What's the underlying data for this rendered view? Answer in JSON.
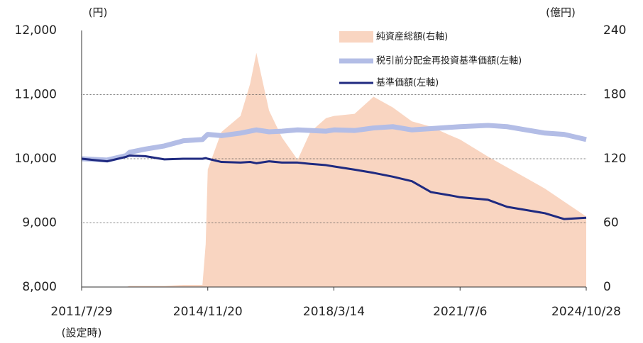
{
  "chart_data": {
    "type": "line",
    "y_label": "(円)",
    "y2_label": "(億円)",
    "annotation": "(設定時)",
    "x": [
      "2011/7/29",
      "2012/3/30",
      "2012/9/28",
      "2012/10/31",
      "2013/3/29",
      "2013/9/30",
      "2014/3/31",
      "2014/9/30",
      "2014/10/31",
      "2014/11/20",
      "2015/3/31",
      "2015/9/30",
      "2015/12/31",
      "2016/2/29",
      "2016/6/30",
      "2016/10/31",
      "2017/3/31",
      "2017/7/31",
      "2017/12/29",
      "2018/3/14",
      "2018/9/28",
      "2019/3/29",
      "2019/9/30",
      "2020/3/31",
      "2020/9/30",
      "2021/3/31",
      "2021/7/6",
      "2022/3/31",
      "2022/9/30",
      "2023/3/31",
      "2023/9/29",
      "2024/3/29",
      "2024/10/28"
    ],
    "xlim": [
      "2011/7/29",
      "2024/10/28"
    ],
    "xticks": [
      "2011/7/29",
      "2014/11/20",
      "2018/3/14",
      "2021/7/6",
      "2024/10/28"
    ],
    "ylim": [
      8000,
      12000
    ],
    "yticks": [
      {
        "value": 8000,
        "label": "8,000"
      },
      {
        "value": 9000,
        "label": "9,000"
      },
      {
        "value": 10000,
        "label": "10,000"
      },
      {
        "value": 11000,
        "label": "11,000"
      },
      {
        "value": 12000,
        "label": "12,000"
      }
    ],
    "y2lim": [
      0,
      240
    ],
    "y2ticks": [
      0,
      60,
      120,
      180,
      240
    ],
    "grid": true,
    "series": [
      {
        "name": "純資産総額(右軸)",
        "type": "area",
        "axis": "y2",
        "color": "#f9d5c1",
        "values": [
          0,
          0,
          0,
          1,
          1,
          1,
          2,
          2,
          40,
          110,
          145,
          160,
          190,
          219,
          165,
          140,
          119,
          145,
          158,
          160,
          162,
          178,
          168,
          155,
          150,
          142,
          138,
          122,
          112,
          102,
          92,
          80,
          66
        ]
      },
      {
        "name": "税引前分配金再投資基準価額(左軸)",
        "type": "line",
        "color": "#b3bde6",
        "values": [
          10000,
          9980,
          10050,
          10100,
          10150,
          10200,
          10280,
          10300,
          10350,
          10380,
          10360,
          10400,
          10430,
          10450,
          10420,
          10430,
          10450,
          10440,
          10430,
          10450,
          10440,
          10480,
          10500,
          10450,
          10470,
          10490,
          10500,
          10520,
          10500,
          10450,
          10400,
          10380,
          10300
        ]
      },
      {
        "name": "基準価額(左軸)",
        "type": "line",
        "color": "#1f2a80",
        "values": [
          10000,
          9960,
          10030,
          10050,
          10040,
          9990,
          10000,
          10000,
          10010,
          10000,
          9950,
          9940,
          9950,
          9930,
          9960,
          9940,
          9940,
          9920,
          9900,
          9880,
          9830,
          9780,
          9720,
          9650,
          9480,
          9430,
          9400,
          9360,
          9250,
          9200,
          9150,
          9060,
          9080
        ]
      }
    ]
  }
}
